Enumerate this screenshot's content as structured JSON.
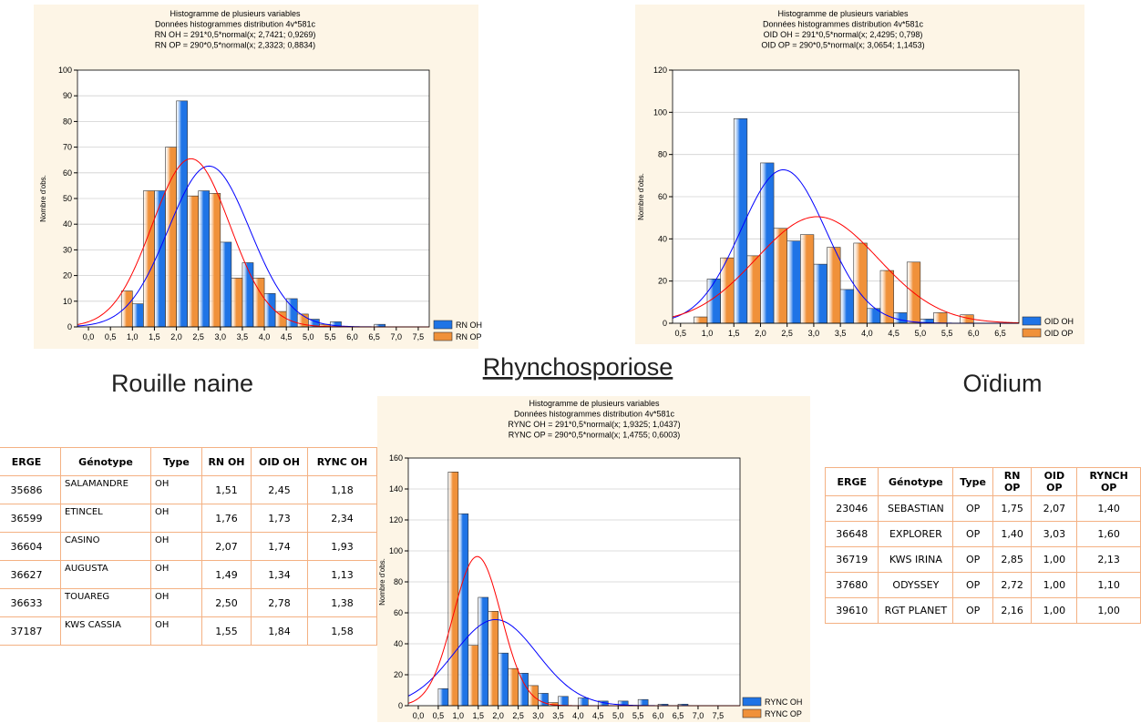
{
  "chart_data": [
    {
      "type": "histogram",
      "title": "Histogramme de plusieurs variables",
      "subtitle": [
        "Données histogrammes distribution 4v*581c",
        "RN OH = 291*0,5*normal(x; 2,7421; 0,9269)",
        "RN OP = 290*0,5*normal(x; 2,3323; 0,8834)"
      ],
      "ylabel": "Nombre d'obs.",
      "caption": "Rouille naine",
      "bins": [
        0,
        0.5,
        1,
        1.5,
        2,
        2.5,
        3,
        3.5,
        4,
        4.5,
        5,
        5.5,
        6,
        6.5,
        7,
        7.5
      ],
      "series": [
        {
          "name": "RN OH",
          "color": "#1f74e6",
          "values": [
            0,
            0,
            9,
            53,
            88,
            53,
            33,
            25,
            13,
            11,
            3,
            2,
            0,
            1,
            0
          ],
          "fit": {
            "n": 291,
            "mean": 2.7421,
            "sd": 0.9269,
            "color": "#0000ff"
          }
        },
        {
          "name": "RN OP",
          "color": "#f0913a",
          "values": [
            0,
            14,
            53,
            70,
            51,
            52,
            19,
            19,
            6,
            5,
            1,
            0,
            0,
            0,
            0
          ],
          "fit": {
            "n": 290,
            "mean": 2.3323,
            "sd": 0.8834,
            "color": "#ff0000"
          }
        }
      ],
      "xlim": [
        -0.25,
        7.75
      ],
      "ylim": [
        0,
        100
      ],
      "xticks": [
        {
          "value": 0,
          "label": "0,0"
        },
        {
          "value": 0.5,
          "label": "0,5"
        },
        {
          "value": 1,
          "label": "1,0"
        },
        {
          "value": 1.5,
          "label": "1,5"
        },
        {
          "value": 2,
          "label": "2,0"
        },
        {
          "value": 2.5,
          "label": "2,5"
        },
        {
          "value": 3,
          "label": "3,0"
        },
        {
          "value": 3.5,
          "label": "3,5"
        },
        {
          "value": 4,
          "label": "4,0"
        },
        {
          "value": 4.5,
          "label": "4,5"
        },
        {
          "value": 5,
          "label": "5,0"
        },
        {
          "value": 5.5,
          "label": "5,5"
        },
        {
          "value": 6,
          "label": "6,0"
        },
        {
          "value": 6.5,
          "label": "6,5"
        },
        {
          "value": 7,
          "label": "7,0"
        },
        {
          "value": 7.5,
          "label": "7,5"
        }
      ],
      "yticks": [
        0,
        10,
        20,
        30,
        40,
        50,
        60,
        70,
        80,
        90,
        100
      ],
      "grid": true,
      "legend": "right"
    },
    {
      "type": "histogram",
      "title": "Histogramme de plusieurs variables",
      "subtitle": [
        "Données histogrammes distribution 4v*581c",
        "OID  OH = 291*0,5*normal(x; 2,4295; 0,798)",
        "OID OP = 290*0,5*normal(x; 3,0654; 1,1453)"
      ],
      "ylabel": "Nombre d'obs.",
      "caption": "Oïdium",
      "bins": [
        0.5,
        1,
        1.5,
        2,
        2.5,
        3,
        3.5,
        4,
        4.5,
        5,
        5.5,
        6,
        6.5
      ],
      "series": [
        {
          "name": "OID  OH",
          "color": "#1f74e6",
          "values": [
            0,
            21,
            97,
            76,
            39,
            28,
            16,
            7,
            5,
            2,
            0,
            0
          ],
          "fit": {
            "n": 291,
            "mean": 2.4295,
            "sd": 0.798,
            "color": "#0000ff"
          }
        },
        {
          "name": "OID OP",
          "color": "#f0913a",
          "values": [
            3,
            31,
            32,
            45,
            42,
            36,
            38,
            25,
            29,
            5,
            4,
            0
          ],
          "fit": {
            "n": 290,
            "mean": 3.0654,
            "sd": 1.1453,
            "color": "#ff0000"
          }
        }
      ],
      "xlim": [
        0.35,
        6.85
      ],
      "ylim": [
        0,
        120
      ],
      "xticks": [
        {
          "value": 0.5,
          "label": "0,5"
        },
        {
          "value": 1,
          "label": "1,0"
        },
        {
          "value": 1.5,
          "label": "1,5"
        },
        {
          "value": 2,
          "label": "2,0"
        },
        {
          "value": 2.5,
          "label": "2,5"
        },
        {
          "value": 3,
          "label": "3,0"
        },
        {
          "value": 3.5,
          "label": "3,5"
        },
        {
          "value": 4,
          "label": "4,0"
        },
        {
          "value": 4.5,
          "label": "4,5"
        },
        {
          "value": 5,
          "label": "5,0"
        },
        {
          "value": 5.5,
          "label": "5,5"
        },
        {
          "value": 6,
          "label": "6,0"
        },
        {
          "value": 6.5,
          "label": "6,5"
        }
      ],
      "yticks": [
        0,
        20,
        40,
        60,
        80,
        100,
        120
      ],
      "grid": true,
      "legend": "right"
    },
    {
      "type": "histogram",
      "title": "Histogramme de plusieurs variables",
      "subtitle": [
        "Données histogrammes distribution 4v*581c",
        "RYNC OH = 291*0,5*normal(x; 1,9325; 1,0437)",
        "RYNC OP = 290*0,5*normal(x; 1,4755; 0,6003)"
      ],
      "ylabel": "Nombre d'obs.",
      "caption": "Rhynchosporiose",
      "bins": [
        0,
        0.5,
        1,
        1.5,
        2,
        2.5,
        3,
        3.5,
        4,
        4.5,
        5,
        5.5,
        6,
        6.5,
        7,
        7.5
      ],
      "series": [
        {
          "name": "RYNC OH",
          "color": "#1f74e6",
          "values": [
            0,
            11,
            124,
            70,
            34,
            21,
            8,
            6,
            5,
            3,
            3,
            4,
            1,
            1,
            0
          ],
          "fit": {
            "n": 291,
            "mean": 1.9325,
            "sd": 1.0437,
            "color": "#0000ff"
          }
        },
        {
          "name": "RYNC OP",
          "color": "#f0913a",
          "values": [
            0,
            151,
            39,
            61,
            24,
            13,
            2,
            0,
            0,
            0,
            0,
            0,
            0,
            0,
            0
          ],
          "fit": {
            "n": 290,
            "mean": 1.4755,
            "sd": 0.6003,
            "color": "#ff0000"
          }
        }
      ],
      "xlim": [
        -0.25,
        8.05
      ],
      "ylim": [
        0,
        160
      ],
      "xticks": [
        {
          "value": 0,
          "label": "0,0"
        },
        {
          "value": 0.5,
          "label": "0,5"
        },
        {
          "value": 1,
          "label": "1,0"
        },
        {
          "value": 1.5,
          "label": "1,5"
        },
        {
          "value": 2,
          "label": "2,0"
        },
        {
          "value": 2.5,
          "label": "2,5"
        },
        {
          "value": 3,
          "label": "3,0"
        },
        {
          "value": 3.5,
          "label": "3,5"
        },
        {
          "value": 4,
          "label": "4,0"
        },
        {
          "value": 4.5,
          "label": "4,5"
        },
        {
          "value": 5,
          "label": "5,0"
        },
        {
          "value": 5.5,
          "label": "5,5"
        },
        {
          "value": 6,
          "label": "6,0"
        },
        {
          "value": 6.5,
          "label": "6,5"
        },
        {
          "value": 7,
          "label": "7,0"
        },
        {
          "value": 7.5,
          "label": "7,5"
        }
      ],
      "yticks": [
        0,
        20,
        40,
        60,
        80,
        100,
        120,
        140,
        160
      ],
      "grid": true,
      "legend": "right"
    }
  ],
  "tables": [
    {
      "columns": [
        "ERGE",
        "Génotype",
        "Type",
        "RN OH",
        "OID OH",
        "RYNC OH"
      ],
      "rows": [
        [
          "35686",
          "SALAMANDRE",
          "OH",
          "1,51",
          "2,45",
          "1,18"
        ],
        [
          "36599",
          "ETINCEL",
          "OH",
          "1,76",
          "1,73",
          "2,34"
        ],
        [
          "36604",
          "CASINO",
          "OH",
          "2,07",
          "1,74",
          "1,93"
        ],
        [
          "36627",
          "AUGUSTA",
          "OH",
          "1,49",
          "1,34",
          "1,13"
        ],
        [
          "36633",
          "TOUAREG",
          "OH",
          "2,50",
          "2,78",
          "1,38"
        ],
        [
          "37187",
          "KWS CASSIA",
          "OH",
          "1,55",
          "1,84",
          "1,58"
        ]
      ]
    },
    {
      "columns": [
        "ERGE",
        "Génotype",
        "Type",
        "RN OP",
        "OID OP",
        "RYNCH OP"
      ],
      "rows": [
        [
          "23046",
          "SEBASTIAN",
          "OP",
          "1,75",
          "2,07",
          "1,40"
        ],
        [
          "36648",
          "EXPLORER",
          "OP",
          "1,40",
          "3,03",
          "1,60"
        ],
        [
          "36719",
          "KWS IRINA",
          "OP",
          "2,85",
          "1,00",
          "2,13"
        ],
        [
          "37680",
          "ODYSSEY",
          "OP",
          "2,72",
          "1,00",
          "1,10"
        ],
        [
          "39610",
          "RGT PLANET",
          "OP",
          "2,16",
          "1,00",
          "1,00"
        ]
      ]
    }
  ]
}
